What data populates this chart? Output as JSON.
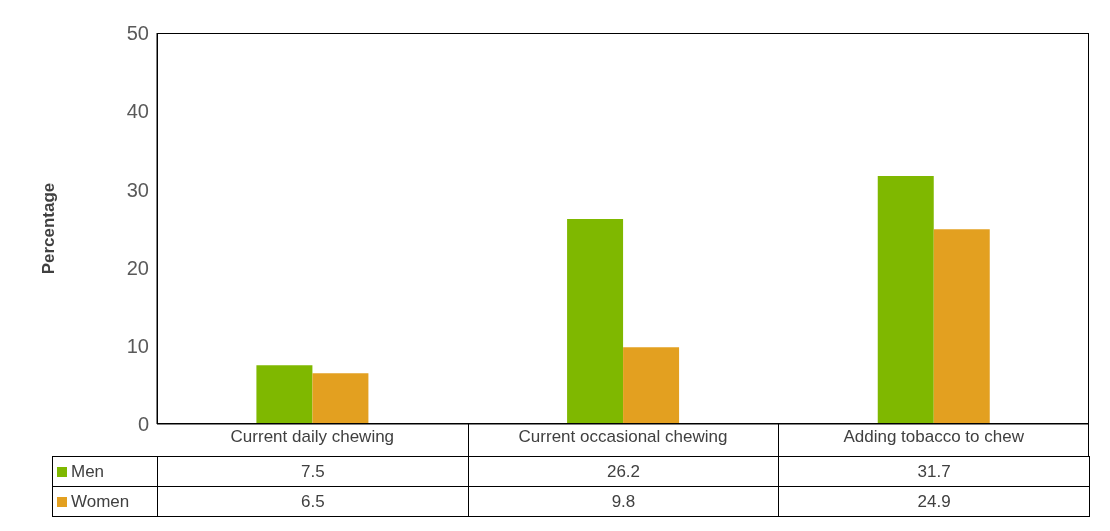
{
  "chart_data": {
    "type": "bar",
    "ylabel": "Percentage",
    "categories": [
      "Current daily chewing",
      "Current occasional chewing",
      "Adding tobacco to chew"
    ],
    "series": [
      {
        "name": "Men",
        "color": "#7fb800",
        "values": [
          7.5,
          26.2,
          31.7
        ]
      },
      {
        "name": "Women",
        "color": "#e3a020",
        "values": [
          6.5,
          9.8,
          24.9
        ]
      }
    ],
    "ylim": [
      0,
      50
    ],
    "yticks": [
      0,
      10,
      20,
      30,
      40,
      50
    ],
    "legend": "bottom",
    "data_labels": true
  }
}
